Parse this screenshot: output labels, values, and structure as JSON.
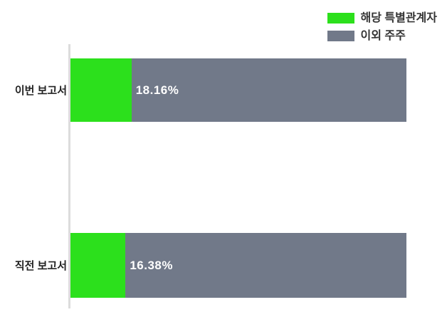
{
  "chart_data": {
    "type": "bar",
    "orientation": "horizontal",
    "stacked": true,
    "title": "",
    "xlabel": "",
    "ylabel": "",
    "xlim": [
      0,
      100
    ],
    "unit": "%",
    "grid": false,
    "legend_position": "top-right",
    "categories": [
      "이번 보고서",
      "직전 보고서"
    ],
    "series": [
      {
        "name": "해당 특별관계자",
        "color": "#2ce01c",
        "values": [
          18.16,
          16.38
        ]
      },
      {
        "name": "이외 주주",
        "color": "#717989",
        "values": [
          81.84,
          83.62
        ]
      }
    ],
    "data_labels": [
      "18.16%",
      "16.38%"
    ]
  },
  "colors": {
    "green": "#2ce01c",
    "slate": "#717989",
    "axis_line": "#dcdcdc",
    "category_text": "#222222",
    "legend_text": "#333333",
    "data_label_text": "#ffffff",
    "background": "#ffffff"
  }
}
